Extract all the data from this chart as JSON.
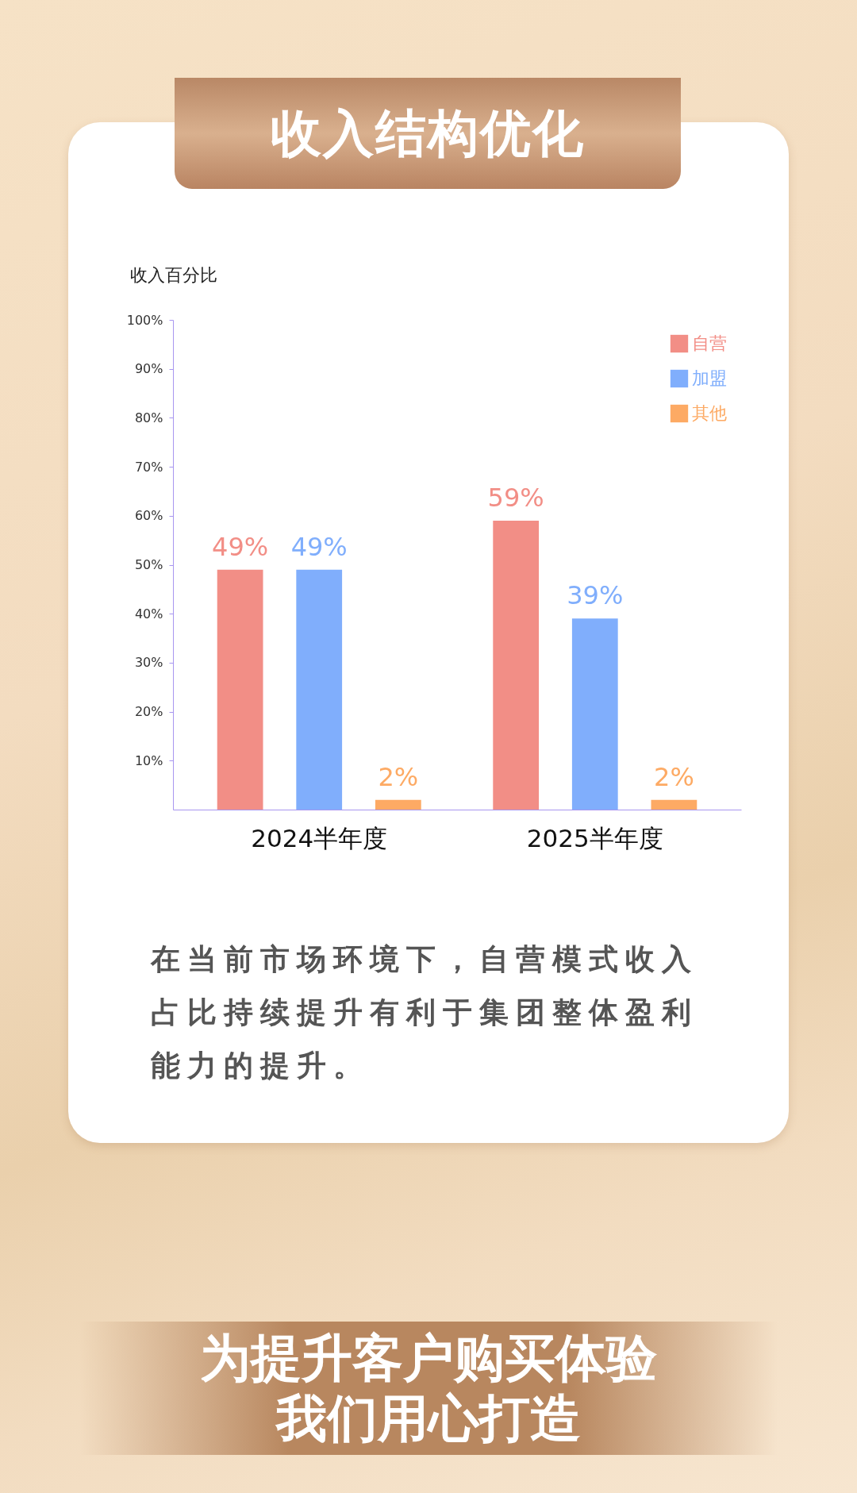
{
  "chart_data": {
    "type": "bar",
    "title": "收入结构优化",
    "ylabel": "收入百分比",
    "categories": [
      "2024半年度",
      "2025半年度"
    ],
    "series": [
      {
        "name": "自营",
        "color": "#f28e86",
        "values": [
          49,
          59
        ]
      },
      {
        "name": "加盟",
        "color": "#80aefc",
        "values": [
          49,
          39
        ]
      },
      {
        "name": "其他",
        "color": "#fdaa64",
        "values": [
          2,
          2
        ]
      }
    ],
    "ylim": [
      0,
      100
    ],
    "yticks": [
      {
        "value": 10,
        "label": "10%"
      },
      {
        "value": 20,
        "label": "20%"
      },
      {
        "value": 30,
        "label": "30%"
      },
      {
        "value": 40,
        "label": "40%"
      },
      {
        "value": 50,
        "label": "50%"
      },
      {
        "value": 60,
        "label": "60%"
      },
      {
        "value": 70,
        "label": "70%"
      },
      {
        "value": 80,
        "label": "80%"
      },
      {
        "value": 90,
        "label": "90%"
      },
      {
        "value": 100,
        "label": "100%"
      }
    ],
    "value_labels": [
      "49%",
      "59%",
      "49%",
      "39%",
      "2%",
      "2%"
    ],
    "legend": "top right",
    "grid": false,
    "annotations": [
      "在当前市场环境下，自营模式收入占比持续提升有利于集团整体盈利能力的提升。",
      "为提升客户购买体验",
      "我们用心打造"
    ]
  }
}
